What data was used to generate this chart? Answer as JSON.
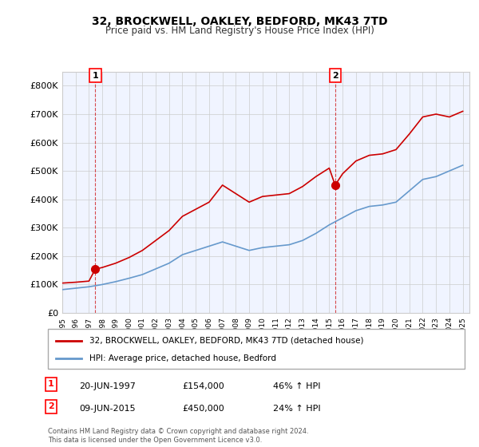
{
  "title": "32, BROCKWELL, OAKLEY, BEDFORD, MK43 7TD",
  "subtitle": "Price paid vs. HM Land Registry's House Price Index (HPI)",
  "sale1_date": "20-JUN-1997",
  "sale1_price": 154000,
  "sale1_label": "46% ↑ HPI",
  "sale2_date": "09-JUN-2015",
  "sale2_price": 450000,
  "sale2_label": "24% ↑ HPI",
  "legend1": "32, BROCKWELL, OAKLEY, BEDFORD, MK43 7TD (detached house)",
  "legend2": "HPI: Average price, detached house, Bedford",
  "footer": "Contains HM Land Registry data © Crown copyright and database right 2024.\nThis data is licensed under the Open Government Licence v3.0.",
  "red_line_color": "#cc0000",
  "blue_line_color": "#6699cc",
  "background_color": "#f0f4ff",
  "plot_bg_color": "#ffffff",
  "ylim": [
    0,
    850000
  ],
  "sale1_x": 1997.47,
  "sale2_x": 2015.44,
  "hpi_years": [
    1995,
    1996,
    1997,
    1998,
    1999,
    2000,
    2001,
    2002,
    2003,
    2004,
    2005,
    2006,
    2007,
    2008,
    2009,
    2010,
    2011,
    2012,
    2013,
    2014,
    2015,
    2016,
    2017,
    2018,
    2019,
    2020,
    2021,
    2022,
    2023,
    2024,
    2025
  ],
  "hpi_values": [
    82000,
    87000,
    92000,
    100000,
    110000,
    122000,
    135000,
    155000,
    175000,
    205000,
    220000,
    235000,
    250000,
    235000,
    220000,
    230000,
    235000,
    240000,
    255000,
    280000,
    310000,
    335000,
    360000,
    375000,
    380000,
    390000,
    430000,
    470000,
    480000,
    500000,
    520000
  ],
  "red_years": [
    1995,
    1996,
    1997,
    1997.47,
    1998,
    1999,
    2000,
    2001,
    2002,
    2003,
    2004,
    2005,
    2006,
    2007,
    2008,
    2009,
    2010,
    2011,
    2012,
    2013,
    2014,
    2015,
    2015.44,
    2016,
    2017,
    2018,
    2019,
    2020,
    2021,
    2022,
    2023,
    2024,
    2025
  ],
  "red_values": [
    105000,
    108000,
    112000,
    154000,
    160000,
    175000,
    195000,
    220000,
    255000,
    290000,
    340000,
    365000,
    390000,
    450000,
    420000,
    390000,
    410000,
    415000,
    420000,
    445000,
    480000,
    510000,
    450000,
    490000,
    535000,
    555000,
    560000,
    575000,
    630000,
    690000,
    700000,
    690000,
    710000
  ]
}
